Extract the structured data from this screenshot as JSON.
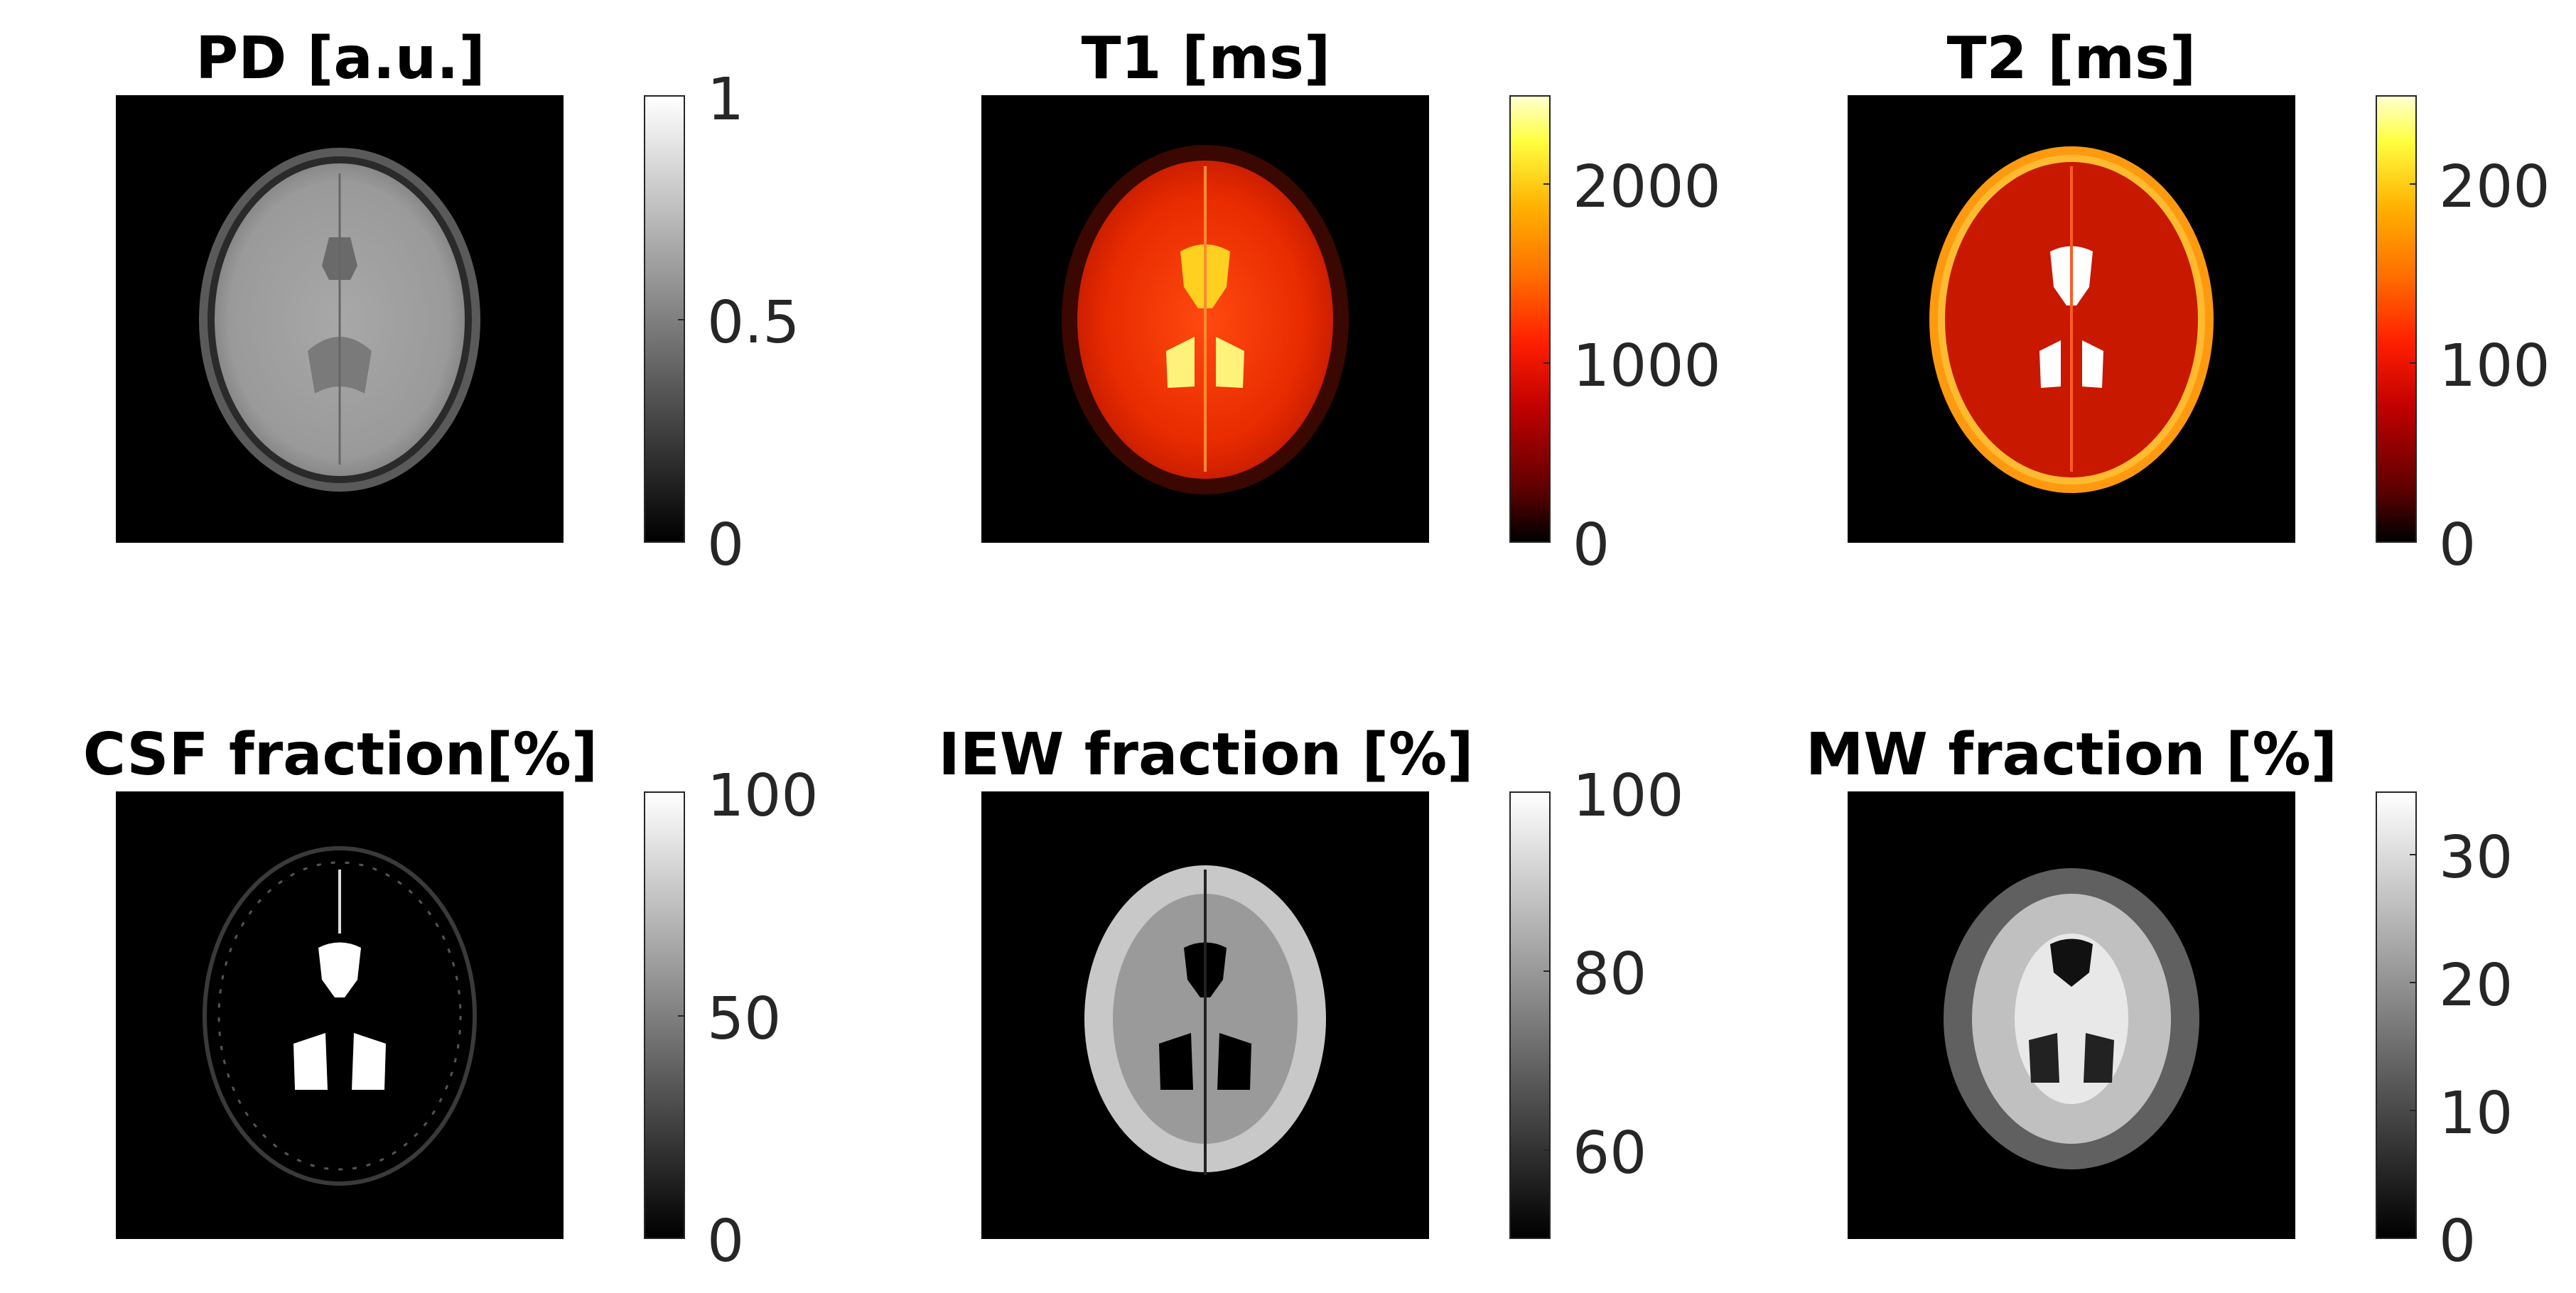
{
  "panels": [
    {
      "title": "PD [a.u.]",
      "colormap": "gray",
      "ticks": [
        "1",
        "0.5",
        "0"
      ],
      "tick_values": [
        1,
        0.5,
        0
      ],
      "range": [
        0,
        1
      ]
    },
    {
      "title": "T1 [ms]",
      "colormap": "hot",
      "ticks": [
        "2000",
        "1000",
        "0"
      ],
      "tick_values": [
        2000,
        1000,
        0
      ],
      "range": [
        0,
        2500
      ]
    },
    {
      "title": "T2 [ms]",
      "colormap": "hot",
      "ticks": [
        "200",
        "100",
        "0"
      ],
      "tick_values": [
        200,
        100,
        0
      ],
      "range": [
        0,
        250
      ]
    },
    {
      "title": "CSF fraction[%]",
      "colormap": "gray",
      "ticks": [
        "100",
        "50",
        "0"
      ],
      "tick_values": [
        100,
        50,
        0
      ],
      "range": [
        0,
        100
      ]
    },
    {
      "title": "IEW fraction [%]",
      "colormap": "gray",
      "ticks": [
        "100",
        "80",
        "60"
      ],
      "tick_values": [
        100,
        80,
        60
      ],
      "range": [
        50,
        100
      ]
    },
    {
      "title": "MW fraction [%]",
      "colormap": "gray",
      "ticks": [
        "30",
        "20",
        "10",
        "0"
      ],
      "tick_values": [
        30,
        20,
        10,
        0
      ],
      "range": [
        0,
        35
      ]
    }
  ],
  "colors": {
    "tick_text": "#262626",
    "title_text": "#000000",
    "background": "#ffffff"
  }
}
